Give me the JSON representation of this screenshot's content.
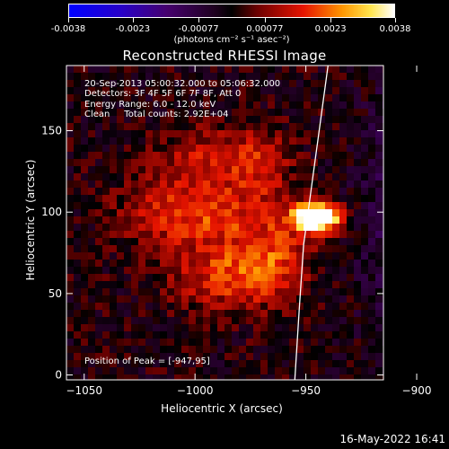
{
  "colorbar": {
    "ticks": [
      "-0.0038",
      "-0.0023",
      "-0.00077",
      "0.00077",
      "0.0023",
      "0.0038"
    ],
    "unit": "(photons cm⁻² s⁻¹ asec⁻²)",
    "range": [
      -0.0038,
      0.0038
    ]
  },
  "chart_data": {
    "type": "heatmap",
    "title": "Reconstructed RHESSI Image",
    "xlabel": "Heliocentric X (arcsec)",
    "ylabel": "Heliocentric Y (arcsec)",
    "xlim": [
      -1058,
      -915
    ],
    "ylim": [
      -3,
      190
    ],
    "x_ticks": [
      "-1050",
      "-1000",
      "-950",
      "-900"
    ],
    "x_tick_values": [
      -1050,
      -1000,
      -950,
      -900
    ],
    "y_ticks": [
      "0",
      "50",
      "100",
      "150"
    ],
    "y_tick_values": [
      0,
      50,
      100,
      150
    ],
    "peak": {
      "x": -947,
      "y": 95,
      "value": 0.0038
    },
    "limb_curve": [
      [
        -955,
        -3
      ],
      [
        -953,
        40
      ],
      [
        -951,
        80
      ],
      [
        -949,
        100
      ],
      [
        -947,
        120
      ],
      [
        -943,
        160
      ],
      [
        -940,
        190
      ]
    ],
    "emission_blobs": [
      {
        "x": -945,
        "y": 97,
        "sx": 7,
        "sy": 6,
        "amp": 0.0062
      },
      {
        "x": -1000,
        "y": 100,
        "sx": 22,
        "sy": 16,
        "amp": 0.0019
      },
      {
        "x": -985,
        "y": 60,
        "sx": 18,
        "sy": 14,
        "amp": 0.0017
      },
      {
        "x": -995,
        "y": 135,
        "sx": 15,
        "sy": 12,
        "amp": 0.0012
      },
      {
        "x": -970,
        "y": 130,
        "sx": 10,
        "sy": 15,
        "amp": 0.0012
      },
      {
        "x": -965,
        "y": 75,
        "sx": 12,
        "sy": 18,
        "amp": 0.0014
      },
      {
        "x": -905,
        "y": 100,
        "sx": 14,
        "sy": 60,
        "amp": -0.001
      }
    ],
    "annotations": {
      "time_range": "20-Sep-2013 05:00:32.000 to 05:06:32.000",
      "detectors": "Detectors: 3F 4F 5F 6F 7F 8F, Att 0",
      "energy": "Energy Range: 6.0 - 12.0 keV",
      "method": "Clean",
      "total_counts": "Total counts: 2.92E+04",
      "peak": "Position of Peak = [-947,95]"
    }
  },
  "footer": {
    "date": "16-May-2022 16:41"
  }
}
